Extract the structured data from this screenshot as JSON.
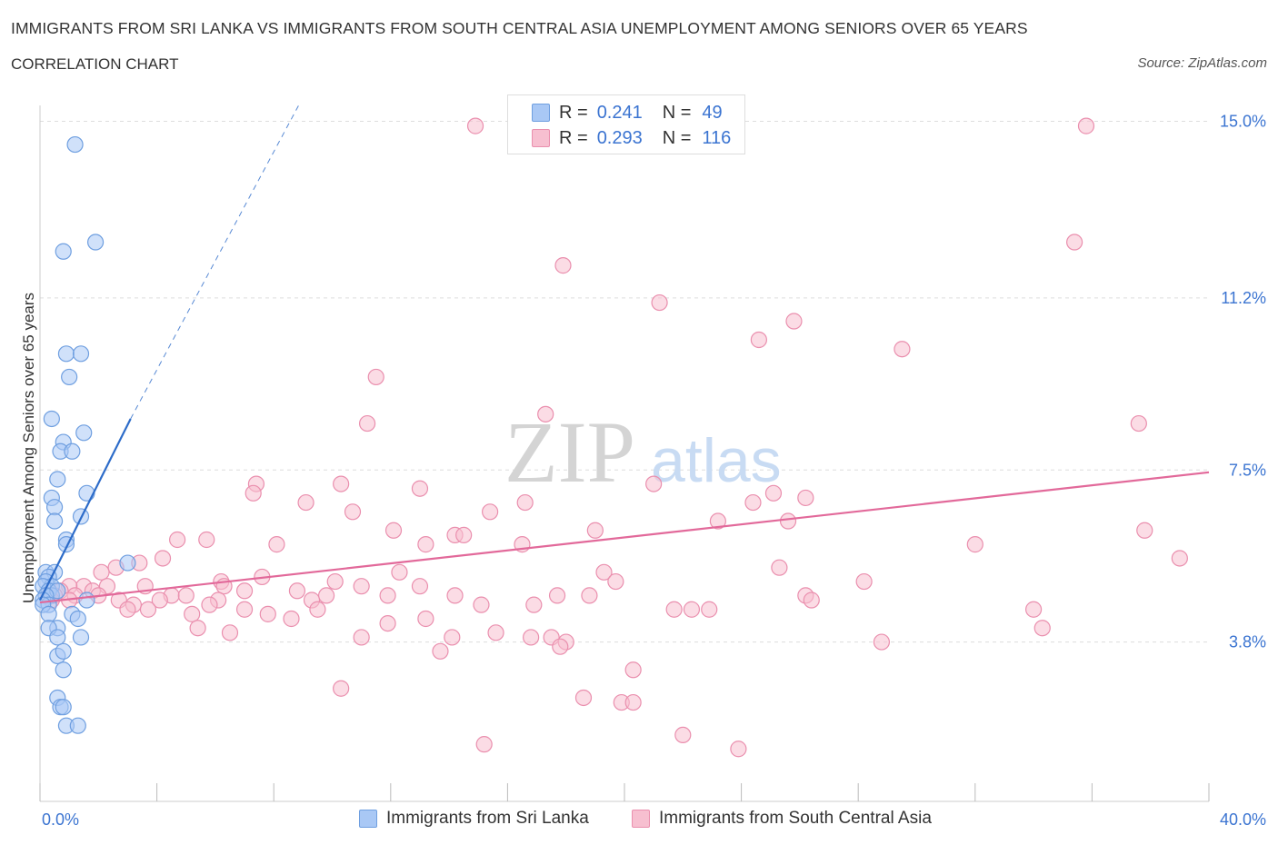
{
  "title": "IMMIGRANTS FROM SRI LANKA VS IMMIGRANTS FROM SOUTH CENTRAL ASIA UNEMPLOYMENT AMONG SENIORS OVER 65 YEARS",
  "subtitle": "CORRELATION CHART",
  "source": "Source: ZipAtlas.com",
  "watermark": {
    "zip": "ZIP",
    "atlas": "atlas"
  },
  "legend": {
    "rows": [
      {
        "r_label": "R =",
        "r_value": "0.241",
        "n_label": "N =",
        "n_value": "49"
      },
      {
        "r_label": "R =",
        "r_value": "0.293",
        "n_label": "N =",
        "n_value": "116"
      }
    ]
  },
  "colors": {
    "series1_fill": "#a9c8f5",
    "series1_stroke": "#6f9fe0",
    "series1_line": "#2d6cc9",
    "series2_fill": "#f7bfd0",
    "series2_stroke": "#ea8fae",
    "series2_line": "#e2699a",
    "tick_label": "#3b74d1",
    "grid": "#dddddd"
  },
  "chart_data": {
    "type": "scatter",
    "title": "IMMIGRANTS FROM SRI LANKA VS IMMIGRANTS FROM SOUTH CENTRAL ASIA UNEMPLOYMENT AMONG SENIORS OVER 65 YEARS",
    "xlabel": "",
    "ylabel": "Unemployment Among Seniors over 65 years",
    "xlim": [
      0,
      40
    ],
    "ylim": [
      0,
      15.5
    ],
    "x_tick_labels": [
      "0.0%",
      "40.0%"
    ],
    "y_ticks": [
      3.8,
      7.5,
      11.2,
      15.0
    ],
    "y_tick_labels": [
      "3.8%",
      "7.5%",
      "11.2%",
      "15.0%"
    ],
    "grid": true,
    "series": [
      {
        "name": "Immigrants from Sri Lanka",
        "r": 0.241,
        "n": 49,
        "trend": {
          "x0": 0,
          "y0": 4.7,
          "x1": 3.1,
          "y1": 8.6,
          "dash_to_x": 8.9,
          "dash_to_y": 15.4
        },
        "points": [
          [
            1.2,
            14.5
          ],
          [
            0.8,
            12.2
          ],
          [
            1.9,
            12.4
          ],
          [
            0.9,
            10.0
          ],
          [
            1.4,
            10.0
          ],
          [
            1.0,
            9.5
          ],
          [
            0.4,
            8.6
          ],
          [
            1.5,
            8.3
          ],
          [
            0.8,
            8.1
          ],
          [
            0.7,
            7.9
          ],
          [
            1.1,
            7.9
          ],
          [
            0.6,
            7.3
          ],
          [
            1.6,
            7.0
          ],
          [
            0.4,
            6.9
          ],
          [
            0.5,
            6.7
          ],
          [
            0.5,
            6.4
          ],
          [
            1.4,
            6.5
          ],
          [
            0.9,
            6.0
          ],
          [
            0.9,
            5.9
          ],
          [
            3.0,
            5.5
          ],
          [
            0.2,
            5.3
          ],
          [
            0.5,
            5.3
          ],
          [
            0.3,
            5.2
          ],
          [
            0.2,
            5.1
          ],
          [
            0.4,
            5.0
          ],
          [
            0.1,
            5.0
          ],
          [
            0.3,
            4.9
          ],
          [
            0.4,
            4.8
          ],
          [
            0.6,
            4.9
          ],
          [
            0.2,
            4.8
          ],
          [
            0.1,
            4.7
          ],
          [
            0.3,
            4.6
          ],
          [
            0.1,
            4.6
          ],
          [
            1.6,
            4.7
          ],
          [
            0.3,
            4.4
          ],
          [
            1.1,
            4.4
          ],
          [
            1.3,
            4.3
          ],
          [
            0.6,
            4.1
          ],
          [
            0.3,
            4.1
          ],
          [
            1.4,
            3.9
          ],
          [
            0.6,
            3.9
          ],
          [
            0.6,
            3.5
          ],
          [
            0.8,
            3.6
          ],
          [
            0.8,
            3.2
          ],
          [
            0.6,
            2.6
          ],
          [
            0.7,
            2.4
          ],
          [
            0.8,
            2.4
          ],
          [
            0.9,
            2.0
          ],
          [
            1.3,
            2.0
          ]
        ]
      },
      {
        "name": "Immigrants from South Central Asia",
        "r": 0.293,
        "n": 116,
        "trend": {
          "x0": 0,
          "y0": 4.65,
          "x1": 40,
          "y1": 7.45
        },
        "points": [
          [
            14.9,
            14.9
          ],
          [
            35.8,
            14.9
          ],
          [
            35.4,
            12.4
          ],
          [
            17.9,
            11.9
          ],
          [
            21.2,
            11.1
          ],
          [
            25.8,
            10.7
          ],
          [
            24.6,
            10.3
          ],
          [
            29.5,
            10.1
          ],
          [
            11.5,
            9.5
          ],
          [
            17.3,
            8.7
          ],
          [
            11.2,
            8.5
          ],
          [
            37.6,
            8.5
          ],
          [
            7.4,
            7.2
          ],
          [
            10.3,
            7.2
          ],
          [
            13.0,
            7.1
          ],
          [
            21.0,
            7.2
          ],
          [
            25.1,
            7.0
          ],
          [
            26.2,
            6.9
          ],
          [
            7.3,
            7.0
          ],
          [
            9.1,
            6.8
          ],
          [
            16.6,
            6.8
          ],
          [
            24.4,
            6.8
          ],
          [
            10.7,
            6.6
          ],
          [
            15.4,
            6.6
          ],
          [
            12.1,
            6.2
          ],
          [
            19.0,
            6.2
          ],
          [
            25.6,
            6.4
          ],
          [
            23.2,
            6.4
          ],
          [
            14.2,
            6.1
          ],
          [
            14.5,
            6.1
          ],
          [
            37.8,
            6.2
          ],
          [
            5.7,
            6.0
          ],
          [
            4.7,
            6.0
          ],
          [
            13.2,
            5.9
          ],
          [
            16.5,
            5.9
          ],
          [
            8.1,
            5.9
          ],
          [
            32.0,
            5.9
          ],
          [
            4.2,
            5.6
          ],
          [
            3.4,
            5.5
          ],
          [
            2.6,
            5.4
          ],
          [
            39.0,
            5.6
          ],
          [
            12.3,
            5.3
          ],
          [
            19.3,
            5.3
          ],
          [
            25.3,
            5.4
          ],
          [
            2.1,
            5.3
          ],
          [
            7.6,
            5.2
          ],
          [
            6.2,
            5.1
          ],
          [
            19.7,
            5.1
          ],
          [
            28.2,
            5.1
          ],
          [
            10.1,
            5.1
          ],
          [
            13.0,
            5.0
          ],
          [
            11.0,
            5.0
          ],
          [
            1.5,
            5.0
          ],
          [
            2.3,
            5.0
          ],
          [
            1.0,
            5.0
          ],
          [
            1.8,
            4.9
          ],
          [
            0.7,
            4.9
          ],
          [
            3.6,
            5.0
          ],
          [
            7.0,
            4.9
          ],
          [
            6.3,
            5.0
          ],
          [
            2.0,
            4.8
          ],
          [
            1.2,
            4.8
          ],
          [
            0.5,
            4.8
          ],
          [
            4.5,
            4.8
          ],
          [
            5.0,
            4.8
          ],
          [
            8.8,
            4.9
          ],
          [
            9.8,
            4.8
          ],
          [
            11.9,
            4.8
          ],
          [
            14.2,
            4.8
          ],
          [
            17.7,
            4.8
          ],
          [
            18.8,
            4.8
          ],
          [
            26.2,
            4.8
          ],
          [
            0.3,
            4.8
          ],
          [
            9.3,
            4.7
          ],
          [
            6.1,
            4.7
          ],
          [
            2.7,
            4.7
          ],
          [
            1.0,
            4.7
          ],
          [
            0.4,
            4.7
          ],
          [
            4.1,
            4.7
          ],
          [
            3.2,
            4.6
          ],
          [
            5.8,
            4.6
          ],
          [
            15.1,
            4.6
          ],
          [
            16.9,
            4.6
          ],
          [
            26.4,
            4.7
          ],
          [
            3.0,
            4.5
          ],
          [
            3.7,
            4.5
          ],
          [
            7.0,
            4.5
          ],
          [
            9.5,
            4.5
          ],
          [
            7.8,
            4.4
          ],
          [
            8.6,
            4.3
          ],
          [
            11.9,
            4.2
          ],
          [
            34.0,
            4.5
          ],
          [
            22.9,
            4.5
          ],
          [
            22.3,
            4.5
          ],
          [
            21.7,
            4.5
          ],
          [
            13.2,
            4.3
          ],
          [
            5.2,
            4.4
          ],
          [
            5.4,
            4.1
          ],
          [
            6.5,
            4.0
          ],
          [
            15.6,
            4.0
          ],
          [
            34.3,
            4.1
          ],
          [
            11.0,
            3.9
          ],
          [
            16.8,
            3.9
          ],
          [
            14.1,
            3.9
          ],
          [
            17.5,
            3.9
          ],
          [
            18.0,
            3.8
          ],
          [
            28.8,
            3.8
          ],
          [
            13.7,
            3.6
          ],
          [
            17.8,
            3.7
          ],
          [
            20.3,
            3.2
          ],
          [
            10.3,
            2.8
          ],
          [
            18.6,
            2.6
          ],
          [
            19.9,
            2.5
          ],
          [
            20.3,
            2.5
          ],
          [
            22.0,
            1.8
          ],
          [
            15.2,
            1.6
          ],
          [
            23.9,
            1.5
          ]
        ]
      }
    ]
  },
  "bottom_legend": [
    "Immigrants from Sri Lanka",
    "Immigrants from South Central Asia"
  ]
}
